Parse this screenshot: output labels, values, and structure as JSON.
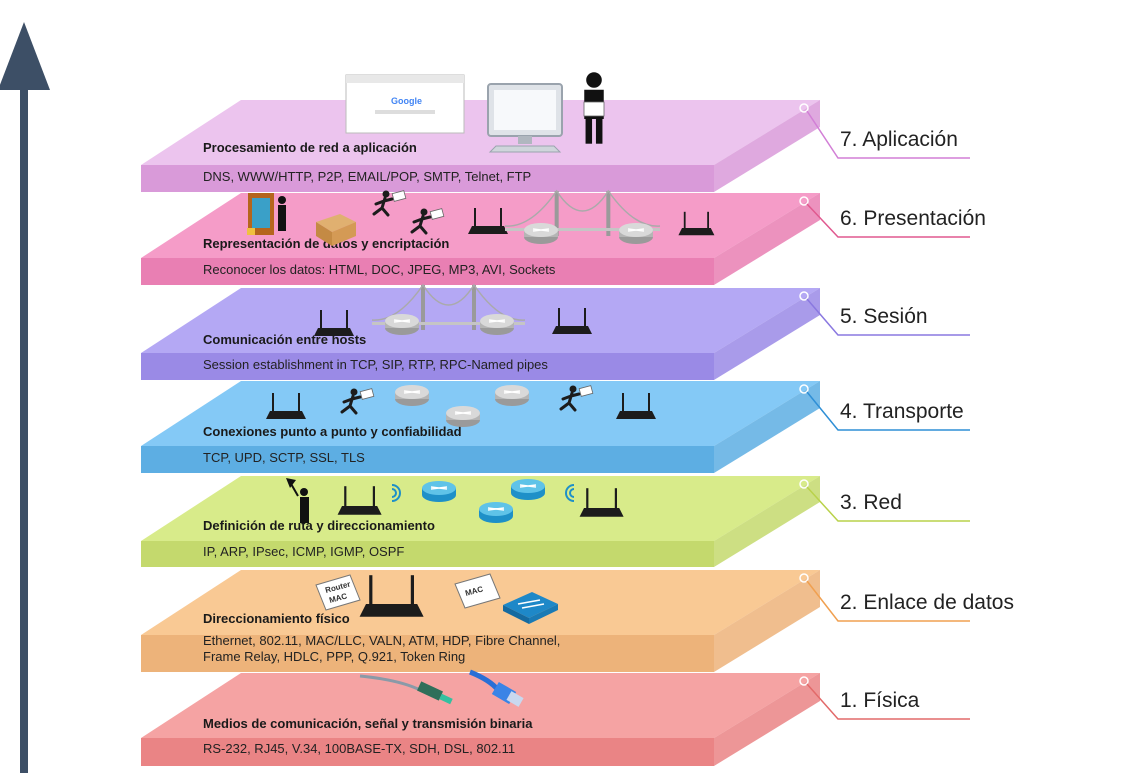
{
  "layers": [
    {
      "name": "7. Aplicación",
      "title": "Procesamiento de red a aplicación",
      "protocols": [
        "DNS, WWW/HTTP, P2P, EMAIL/POP, SMTP, Telnet, FTP"
      ],
      "top_color": "#ecc4ee",
      "front_color": "#d99ad9",
      "accent": "#d27fd6"
    },
    {
      "name": "6. Presentación",
      "title": "Representación de datos y encriptación",
      "protocols": [
        "Reconocer los datos: HTML, DOC, JPEG, MP3, AVI, Sockets"
      ],
      "top_color": "#f59cc8",
      "front_color": "#e97fb3",
      "accent": "#e0598f"
    },
    {
      "name": "5. Sesión",
      "title": "Comunicación entre hosts",
      "protocols": [
        "Session establishment in TCP, SIP, RTP, RPC-Named pipes"
      ],
      "top_color": "#b4a8f4",
      "front_color": "#9a8ae6",
      "accent": "#8a78e0"
    },
    {
      "name": "4. Transporte",
      "title": "Conexiones punto a punto y confiabilidad",
      "protocols": [
        "TCP, UPD, SCTP, SSL, TLS"
      ],
      "top_color": "#84c9f6",
      "front_color": "#5daee3",
      "accent": "#2f8fd6"
    },
    {
      "name": "3. Red",
      "title": "Definición de ruta y direccionamiento",
      "protocols": [
        "IP, ARP, IPsec, ICMP, IGMP, OSPF"
      ],
      "top_color": "#d8eb8a",
      "front_color": "#c4d96d",
      "accent": "#b9d24a"
    },
    {
      "name": "2. Enlace de datos",
      "title": "Direccionamiento físico",
      "protocols": [
        "Ethernet, 802.11, MAC/LLC, VALN, ATM, HDP, Fibre Channel,",
        "Frame Relay, HDLC, PPP, Q.921, Token Ring"
      ],
      "top_color": "#f9c994",
      "front_color": "#edb37a",
      "accent": "#f0a050"
    },
    {
      "name": "1. Física",
      "title": "Medios de comunicación, señal y transmisión binaria",
      "protocols": [
        "RS-232, RJ45, V.34, 100BASE-TX, SDH, DSL, 802.11"
      ],
      "top_color": "#f5a3a3",
      "front_color": "#ea8485",
      "accent": "#e26a6a"
    }
  ],
  "illustrations": {
    "browser_logo": "Google",
    "router_tag": [
      "Router",
      "MAC"
    ],
    "mac_tag": "MAC"
  },
  "icons": [
    "up-arrow-icon",
    "browser-window-icon",
    "desktop-computer-icon",
    "person-with-envelope-icon",
    "door-guard-icon",
    "cardboard-box-icon",
    "running-courier-icon",
    "wifi-router-icon",
    "suspension-bridge-icon",
    "network-router-icon",
    "wifi-signal-icon",
    "person-with-flag-icon",
    "network-switch-icon",
    "fiber-cable-icon",
    "ethernet-cable-icon"
  ],
  "arrow_color": "#3d4f66"
}
